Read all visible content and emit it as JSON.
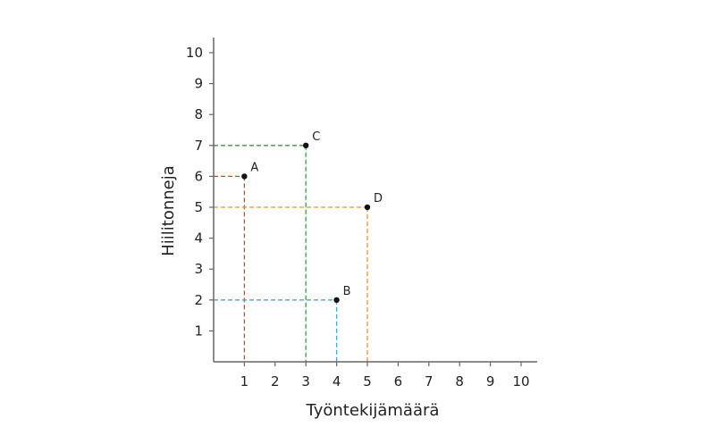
{
  "chart_data": {
    "type": "scatter",
    "title": "",
    "xlabel": "Työntekijämäärä",
    "ylabel": "Hiilitonneja",
    "xlim": [
      0,
      10
    ],
    "ylim": [
      0,
      10
    ],
    "x_ticks": [
      1,
      2,
      3,
      4,
      5,
      6,
      7,
      8,
      9,
      10
    ],
    "y_ticks": [
      1,
      2,
      3,
      4,
      5,
      6,
      7,
      8,
      9,
      10
    ],
    "grid": false,
    "points": [
      {
        "label": "A",
        "x": 1,
        "y": 6,
        "guide_color": "#d9442f"
      },
      {
        "label": "B",
        "x": 4,
        "y": 2,
        "guide_color": "#4aa3d8"
      },
      {
        "label": "C",
        "x": 3,
        "y": 7,
        "guide_color": "#3a9a3a"
      },
      {
        "label": "D",
        "x": 5,
        "y": 5,
        "guide_color": "#e8962a"
      }
    ]
  }
}
